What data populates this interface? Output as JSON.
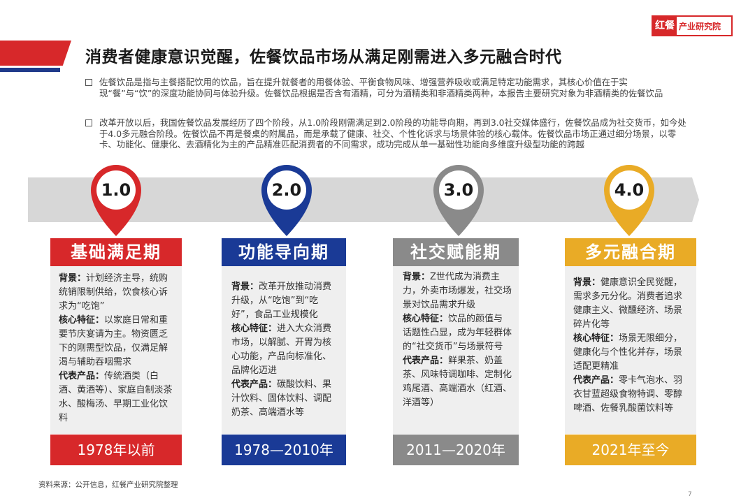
{
  "logo": {
    "mark": "红餐",
    "text": "产业研究院"
  },
  "title": "消费者健康意识觉醒，佐餐饮品市场从满足刚需进入多元融合时代",
  "bullets": [
    "佐餐饮品是指与主餐搭配饮用的饮品，旨在提升就餐者的用餐体验、平衡食物风味、增强营养吸收或满足特定功能需求，其核心价值在于实现“餐”与“饮”的深度功能协同与体验升级。佐餐饮品根据是否含有酒精，可分为酒精类和非酒精类两种，本报告主要研究对象为非酒精类的佐餐饮品",
    "改革开放以后，我国佐餐饮品发展经历了四个阶段，从1.0阶段刚需满足到2.0阶段的功能导向期，再到3.0社交媒体盛行，佐餐饮品成为社交货币，如今处于4.0多元融合阶段。佐餐饮品不再是餐桌的附属品，而是承载了健康、社交、个性化诉求与场景体验的核心载体。佐餐饮品市场正通过细分场景，以零卡、功能化、健康化、去酒精化为主的产品精准匹配消费者的不同需求，成功完成从单一基础性功能向多维度升级型功能的跨越"
  ],
  "colors": {
    "red": "#d7282a",
    "blue": "#1a3a96",
    "gray": "#8a8a8a",
    "yellow": "#e9ab26"
  },
  "phases": [
    {
      "version": "1.0",
      "name": "基础满足期",
      "years": "1978年以前",
      "color": "#d7282a",
      "lines": [
        {
          "k": "背景：",
          "v": "计划经济主导，统购统销限制供给，饮食核心诉求为“吃饱”"
        },
        {
          "k": "核心特征：",
          "v": "以家庭日常和重要节庆宴请为主。物资匮乏下的刚需型饮品，仅满足解渴与辅助吞咽需求"
        },
        {
          "k": "代表产品：",
          "v": "传统酒类（白酒、黄酒等）、家庭自制淡茶水、酸梅汤、早期工业化饮料"
        }
      ]
    },
    {
      "version": "2.0",
      "name": "功能导向期",
      "years": "1978—2010年",
      "color": "#1a3a96",
      "lines": [
        {
          "k": "背景：",
          "v": "改革开放推动消费升级，从“吃饱”到“吃好”，食品工业规模化"
        },
        {
          "k": "核心特征：",
          "v": "进入大众消费市场，以解腻、开胃为核心功能，产品向标准化、品牌化迈进"
        },
        {
          "k": "代表产品：",
          "v": "碳酸饮料、果汁饮料、固体饮料、调配奶茶、高端酒水等"
        }
      ]
    },
    {
      "version": "3.0",
      "name": "社交赋能期",
      "years": "2011—2020年",
      "color": "#8a8a8a",
      "lines": [
        {
          "k": "背景：",
          "v": "Z世代成为消费主力，外卖市场爆发，社交场景对饮品需求升级"
        },
        {
          "k": "核心特征：",
          "v": "饮品的颜值与话题性凸显，成为年轻群体的“社交货币”与场景符号"
        },
        {
          "k": "代表产品：",
          "v": "鲜果茶、奶盖茶、风味特调咖啡、定制化鸡尾酒、高端酒水（红酒、洋酒等）"
        }
      ]
    },
    {
      "version": "4.0",
      "name": "多元融合期",
      "years": "2021年至今",
      "color": "#e9ab26",
      "lines": [
        {
          "k": "背景：",
          "v": "健康意识全民觉醒，需求多元分化。消费者追求健康主义、微醺经济、场景碎片化等"
        },
        {
          "k": "核心特征：",
          "v": "场景无限细分，健康化与个性化并存，场景适配更精准"
        },
        {
          "k": "代表产品：",
          "v": "零卡气泡水、羽衣甘蓝超级食物特调、零醇啤酒、佐餐乳酸菌饮料等"
        }
      ]
    }
  ],
  "source": "资料来源：公开信息，红餐产业研究院整理",
  "page_number": "7"
}
